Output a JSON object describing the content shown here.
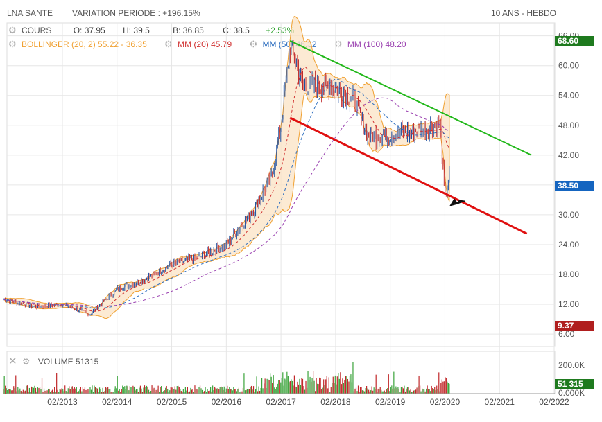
{
  "header": {
    "instrument": "LNA SANTE",
    "variation": "VARIATION PERIODE : +196.15%",
    "period": "10 ANS - HEBDO"
  },
  "legend": {
    "cours_label": "COURS",
    "open": "O: 37.95",
    "high": "H: 39.5",
    "low": "B: 36.85",
    "close": "C: 38.5",
    "change": "+2.53%",
    "bollinger": "BOLLINGER (20, 2)  55.22 - 36.35",
    "mm20": "MM (20)  45.79",
    "mm50": "MM (50)  46.32",
    "mm100": "MM (100)  48.20",
    "volume_label": "VOLUME  51315"
  },
  "colors": {
    "bollinger": "#f0a030",
    "mm20": "#d03030",
    "mm50": "#3070c0",
    "mm100": "#9a40b0",
    "change": "#2ca02c",
    "green_line": "#22b81a",
    "red_line": "#e01010",
    "up_bar": "#1d4fa0",
    "down_bar": "#c0282a"
  },
  "tags": {
    "high": "68.60",
    "last": "38.50",
    "low": "9.37",
    "volume": "51 315"
  },
  "chart_data": {
    "type": "candlestick",
    "x_ticks": [
      "02/2013",
      "02/2014",
      "02/2015",
      "02/2016",
      "02/2017",
      "02/2018",
      "02/2019",
      "02/2020",
      "02/2021",
      "02/2022"
    ],
    "y_ticks": [
      "66.00",
      "60.00",
      "54.00",
      "48.00",
      "42.00",
      "36.00",
      "30.00",
      "24.00",
      "18.00",
      "12.00",
      "6.00"
    ],
    "ylim": [
      3.5,
      68.6
    ],
    "volume_ticks": [
      "200.0K",
      "0.000K"
    ],
    "trendlines": [
      {
        "name": "upper",
        "color": "green",
        "from": [
          "04/2017",
          65.0
        ],
        "to": [
          "09/2021",
          42.0
        ]
      },
      {
        "name": "lower",
        "color": "red",
        "from": [
          "04/2017",
          49.5
        ],
        "to": [
          "08/2021",
          26.2
        ]
      }
    ],
    "price_path": [
      [
        "01/2012",
        13.0
      ],
      [
        "08/2012",
        11.5
      ],
      [
        "02/2013",
        12.0
      ],
      [
        "08/2013",
        10.0
      ],
      [
        "02/2014",
        15.0
      ],
      [
        "08/2014",
        17.0
      ],
      [
        "02/2015",
        20.0
      ],
      [
        "08/2015",
        21.5
      ],
      [
        "02/2016",
        24.0
      ],
      [
        "08/2016",
        31.0
      ],
      [
        "12/2016",
        38.0
      ],
      [
        "02/2017",
        48.0
      ],
      [
        "04/2017",
        64.0
      ],
      [
        "07/2017",
        56.0
      ],
      [
        "01/2018",
        56.0
      ],
      [
        "06/2018",
        53.0
      ],
      [
        "09/2018",
        46.0
      ],
      [
        "02/2019",
        46.0
      ],
      [
        "08/2019",
        47.0
      ],
      [
        "01/2020",
        48.0
      ],
      [
        "02/2020",
        33.0
      ],
      [
        "03/2020",
        38.5
      ]
    ]
  }
}
